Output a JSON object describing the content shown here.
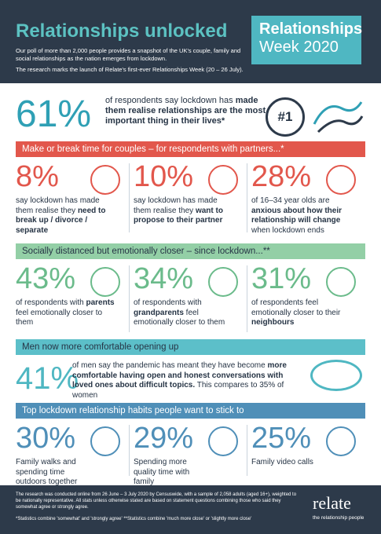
{
  "header": {
    "title": "Relationships unlocked",
    "intro": "Our poll of more than 2,000 people provides a snapshot of the UK's couple, family and social relationships as the nation emerges from lockdown.",
    "launch": "The research marks the launch of Relate's first-ever Relationships Week (20 – 26 July).",
    "badge_line1": "Relationships",
    "badge_line2": "Week 2020"
  },
  "hero": {
    "stat": "61%",
    "badge": "#1",
    "parts": [
      {
        "text": "of respondents say lockdown has ",
        "bold": false
      },
      {
        "text": "made them realise relationships are the most important thing in their lives*",
        "bold": true
      }
    ]
  },
  "sections": [
    {
      "heading": "Make or break time for couples – for respondents with partners...*",
      "color": "#e2574c",
      "stat_color": "#e2574c",
      "heading_color": "#ffffff",
      "layout": "columns",
      "stats": [
        {
          "stat": "8%",
          "parts": [
            {
              "text": "say lockdown has made them realise they ",
              "bold": false
            },
            {
              "text": "need to break up / divorce / separate",
              "bold": true
            }
          ]
        },
        {
          "stat": "10%",
          "parts": [
            {
              "text": "say lockdown has made them realise they ",
              "bold": false
            },
            {
              "text": "want to propose to their partner",
              "bold": true
            }
          ]
        },
        {
          "stat": "28%",
          "parts": [
            {
              "text": "of 16–34 year olds are ",
              "bold": false
            },
            {
              "text": "anxious about how their relationship will change",
              "bold": true
            },
            {
              "text": " when lockdown ends",
              "bold": false
            }
          ]
        }
      ]
    },
    {
      "heading": "Socially distanced but emotionally closer – since lockdown...**",
      "color": "#93cfa6",
      "stat_color": "#6bbb8b",
      "heading_color": "#263445",
      "layout": "columns",
      "stats": [
        {
          "stat": "43%",
          "parts": [
            {
              "text": "of respondents with ",
              "bold": false
            },
            {
              "text": "parents",
              "bold": true
            },
            {
              "text": " feel emotionally closer to them",
              "bold": false
            }
          ]
        },
        {
          "stat": "34%",
          "parts": [
            {
              "text": "of respondents with ",
              "bold": false
            },
            {
              "text": "grandparents",
              "bold": true
            },
            {
              "text": " feel emotionally closer to them",
              "bold": false
            }
          ]
        },
        {
          "stat": "31%",
          "parts": [
            {
              "text": "of respondents feel emotionally closer to their ",
              "bold": false
            },
            {
              "text": "neighbours",
              "bold": true
            }
          ]
        }
      ]
    },
    {
      "heading": "Men now more comfortable opening up",
      "color": "#5cbfc9",
      "stat_color": "#4fb7c2",
      "heading_color": "#263445",
      "layout": "wide",
      "stats": [
        {
          "stat": "41%",
          "parts": [
            {
              "text": "of men say the pandemic has meant they have become ",
              "bold": false
            },
            {
              "text": "more comfortable having open and honest conversations with loved ones about difficult topics.",
              "bold": true
            },
            {
              "text": " This compares to 35% of women",
              "bold": false
            }
          ]
        }
      ]
    },
    {
      "heading": "Top lockdown relationship habits people want to stick to",
      "color": "#4f8fb8",
      "stat_color": "#4f8fb8",
      "heading_color": "#ffffff",
      "layout": "columns",
      "stats": [
        {
          "stat": "30%",
          "parts": [
            {
              "text": "Family walks and spending time outdoors together",
              "bold": false
            }
          ]
        },
        {
          "stat": "29%",
          "parts": [
            {
              "text": "Spending more quality time with family",
              "bold": false
            }
          ]
        },
        {
          "stat": "25%",
          "parts": [
            {
              "text": "Family video calls",
              "bold": false
            }
          ]
        }
      ]
    }
  ],
  "footer": {
    "note": "The research was conducted online from 26 June – 3 July 2020 by Censuswide, with a sample of 2,058 adults (aged 16+), weighted to be nationally representative. All stats unless otherwise stated are based on statement questions combining those who said they somewhat agree or strongly agree.",
    "footnotes": "*Statistics combine 'somewhat' and 'strongly agree' **Statistics combine 'much more close' or 'slightly more close'",
    "logo": "relate",
    "tagline": "the relationship people"
  }
}
